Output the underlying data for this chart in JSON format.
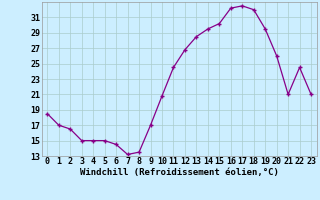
{
  "x": [
    0,
    1,
    2,
    3,
    4,
    5,
    6,
    7,
    8,
    9,
    10,
    11,
    12,
    13,
    14,
    15,
    16,
    17,
    18,
    19,
    20,
    21,
    22,
    23
  ],
  "y": [
    18.5,
    17.0,
    16.5,
    15.0,
    15.0,
    15.0,
    14.5,
    13.2,
    13.5,
    17.0,
    20.8,
    24.5,
    26.8,
    28.5,
    29.5,
    30.2,
    32.2,
    32.5,
    32.0,
    29.5,
    26.0,
    21.0,
    24.5,
    21.0
  ],
  "line_color": "#880088",
  "marker": "+",
  "bg_color": "#cceeff",
  "grid_color": "#aacccc",
  "xlabel": "Windchill (Refroidissement éolien,°C)",
  "ylim": [
    13,
    33
  ],
  "yticks": [
    13,
    15,
    17,
    19,
    21,
    23,
    25,
    27,
    29,
    31
  ],
  "xticks": [
    0,
    1,
    2,
    3,
    4,
    5,
    6,
    7,
    8,
    9,
    10,
    11,
    12,
    13,
    14,
    15,
    16,
    17,
    18,
    19,
    20,
    21,
    22,
    23
  ],
  "xlabel_fontsize": 6.5,
  "tick_fontsize": 6.0
}
